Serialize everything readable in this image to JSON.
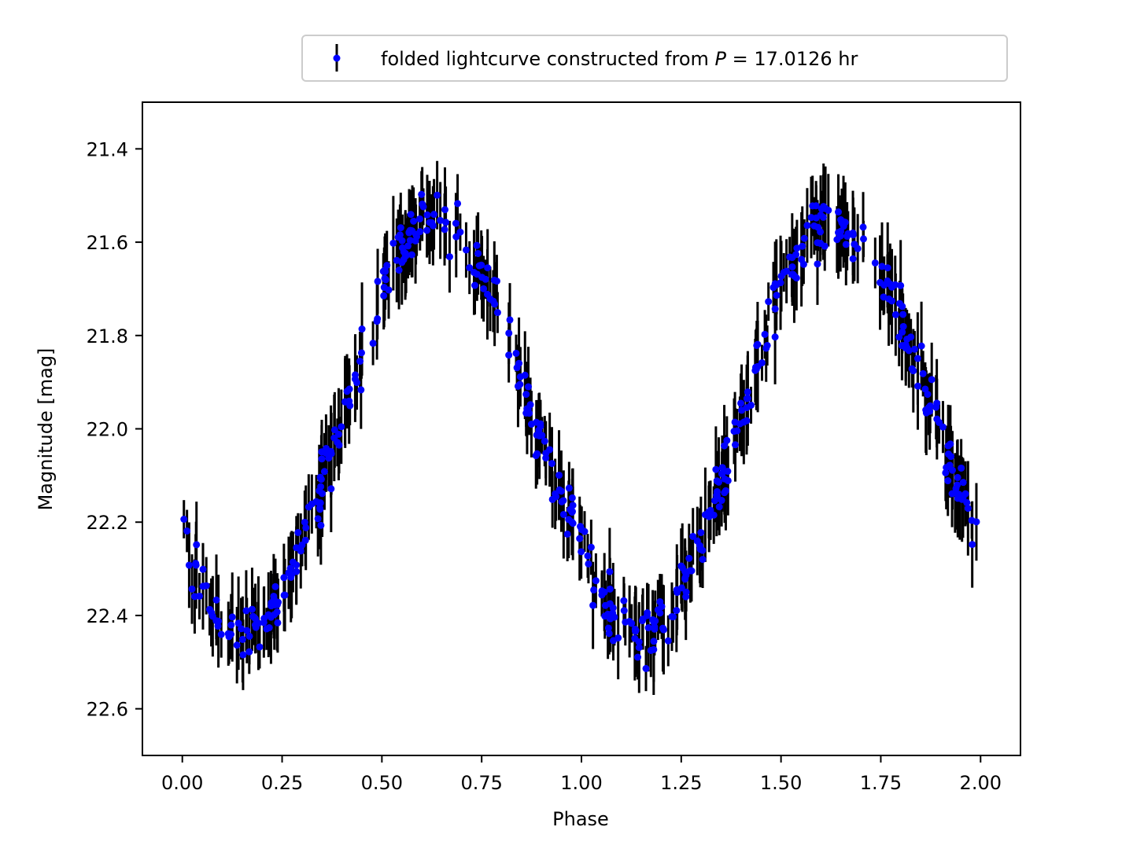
{
  "chart_data": {
    "type": "scatter",
    "xlabel": "Phase",
    "ylabel": "Magnitude [mag]",
    "xlim": [
      -0.1,
      2.1
    ],
    "ylim": [
      22.7,
      21.3
    ],
    "y_axis_inverted": true,
    "x_ticks": [
      "0.00",
      "0.25",
      "0.50",
      "0.75",
      "1.00",
      "1.25",
      "1.50",
      "1.75",
      "2.00"
    ],
    "y_ticks": [
      "21.4",
      "21.6",
      "21.8",
      "22.0",
      "22.2",
      "22.4",
      "22.6"
    ],
    "grid": false,
    "legend": {
      "position": "above-plot-right",
      "label": "folded lightcurve constructed from P = 17.0126 hr",
      "prefix": "folded lightcurve constructed from ",
      "variable": "P",
      "suffix": " = 17.0126 hr"
    },
    "series": [
      {
        "name": "folded lightcurve constructed from P = 17.0126 hr",
        "marker_color": "#0000ff",
        "errorbar_color": "#000000",
        "model": {
          "period_in_phase": 1.0,
          "mean_mag": 22.0,
          "amplitude_mag": 0.44,
          "minimum_brightness_phase": 0.15,
          "maximum_brightness_phase": 0.65,
          "typical_error_mag": 0.07
        },
        "phase_range": [
          0.0,
          2.0
        ],
        "points": [
          [
            0.0,
            22.22
          ],
          [
            0.05,
            22.35
          ],
          [
            0.1,
            22.42
          ],
          [
            0.15,
            22.45
          ],
          [
            0.2,
            22.42
          ],
          [
            0.25,
            22.34
          ],
          [
            0.3,
            22.24
          ],
          [
            0.35,
            22.12
          ],
          [
            0.4,
            21.98
          ],
          [
            0.45,
            21.83
          ],
          [
            0.5,
            21.7
          ],
          [
            0.55,
            21.6
          ],
          [
            0.6,
            21.56
          ],
          [
            0.65,
            21.55
          ],
          [
            0.7,
            21.6
          ],
          [
            0.75,
            21.67
          ],
          [
            0.8,
            21.76
          ],
          [
            0.85,
            21.88
          ],
          [
            0.9,
            22.02
          ],
          [
            0.95,
            22.15
          ],
          [
            1.0,
            22.24
          ],
          [
            1.05,
            22.35
          ],
          [
            1.1,
            22.42
          ],
          [
            1.15,
            22.45
          ],
          [
            1.2,
            22.42
          ],
          [
            1.25,
            22.34
          ],
          [
            1.3,
            22.24
          ],
          [
            1.35,
            22.12
          ],
          [
            1.4,
            21.98
          ],
          [
            1.45,
            21.83
          ],
          [
            1.5,
            21.7
          ],
          [
            1.55,
            21.6
          ],
          [
            1.6,
            21.56
          ],
          [
            1.65,
            21.55
          ],
          [
            1.7,
            21.6
          ],
          [
            1.75,
            21.67
          ],
          [
            1.8,
            21.76
          ],
          [
            1.85,
            21.88
          ],
          [
            1.9,
            22.02
          ],
          [
            1.95,
            22.15
          ],
          [
            2.0,
            22.22
          ]
        ]
      }
    ]
  }
}
